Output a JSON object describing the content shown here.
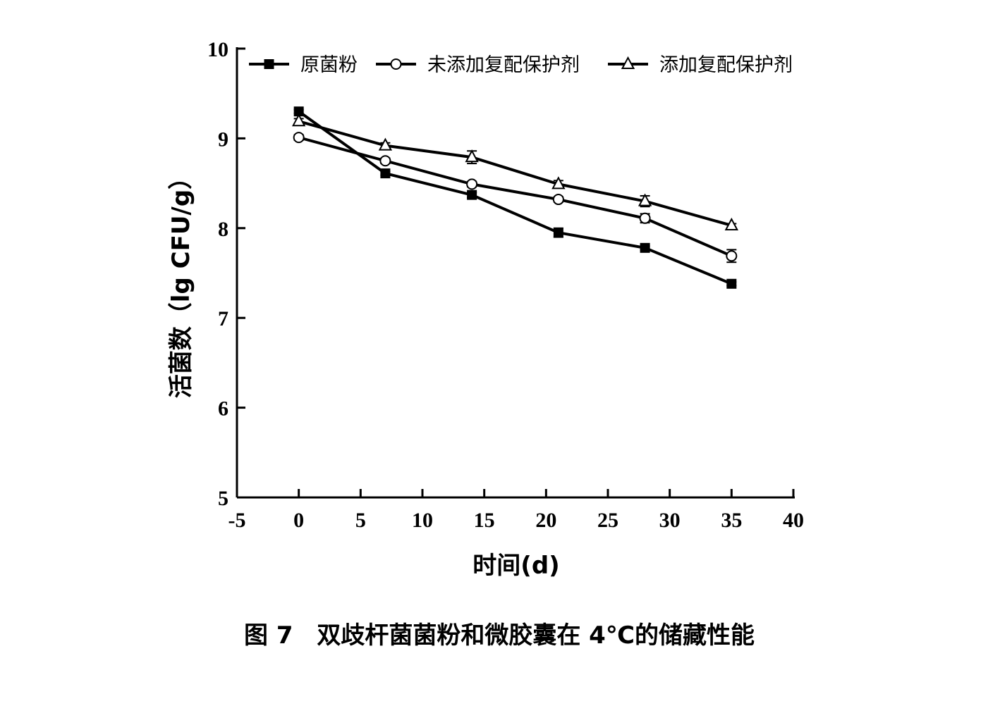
{
  "chart_data": {
    "type": "line",
    "title": "",
    "caption": {
      "label": "图 7",
      "text": "双歧杆菌菌粉和微胶囊在 4℃的储藏性能"
    },
    "xlabel": "时间(d)",
    "ylabel": "活菌数（lg CFU/g）",
    "xlim": [
      -5,
      40
    ],
    "ylim": [
      5,
      10
    ],
    "xticks": [
      -5,
      0,
      5,
      10,
      15,
      20,
      25,
      30,
      35,
      40
    ],
    "yticks": [
      5,
      6,
      7,
      8,
      9,
      10
    ],
    "grid": false,
    "legend_position": "top",
    "x": [
      0,
      7,
      14,
      21,
      28,
      35
    ],
    "series": [
      {
        "name": "原菌粉",
        "marker": "filled-square",
        "values": [
          9.3,
          8.61,
          8.37,
          7.95,
          7.78,
          7.38
        ],
        "errors": [
          0.02,
          0.02,
          0.03,
          0.05,
          0.02,
          0.02
        ]
      },
      {
        "name": "未添加复配保护剂",
        "marker": "open-circle",
        "values": [
          9.01,
          8.75,
          8.49,
          8.32,
          8.11,
          7.69
        ],
        "errors": [
          0.03,
          0.03,
          0.03,
          0.03,
          0.05,
          0.07
        ]
      },
      {
        "name": "添加复配保护剂",
        "marker": "open-triangle",
        "values": [
          9.19,
          8.92,
          8.79,
          8.49,
          8.3,
          8.03
        ],
        "errors": [
          0.03,
          0.03,
          0.07,
          0.04,
          0.06,
          0.02
        ]
      }
    ]
  }
}
